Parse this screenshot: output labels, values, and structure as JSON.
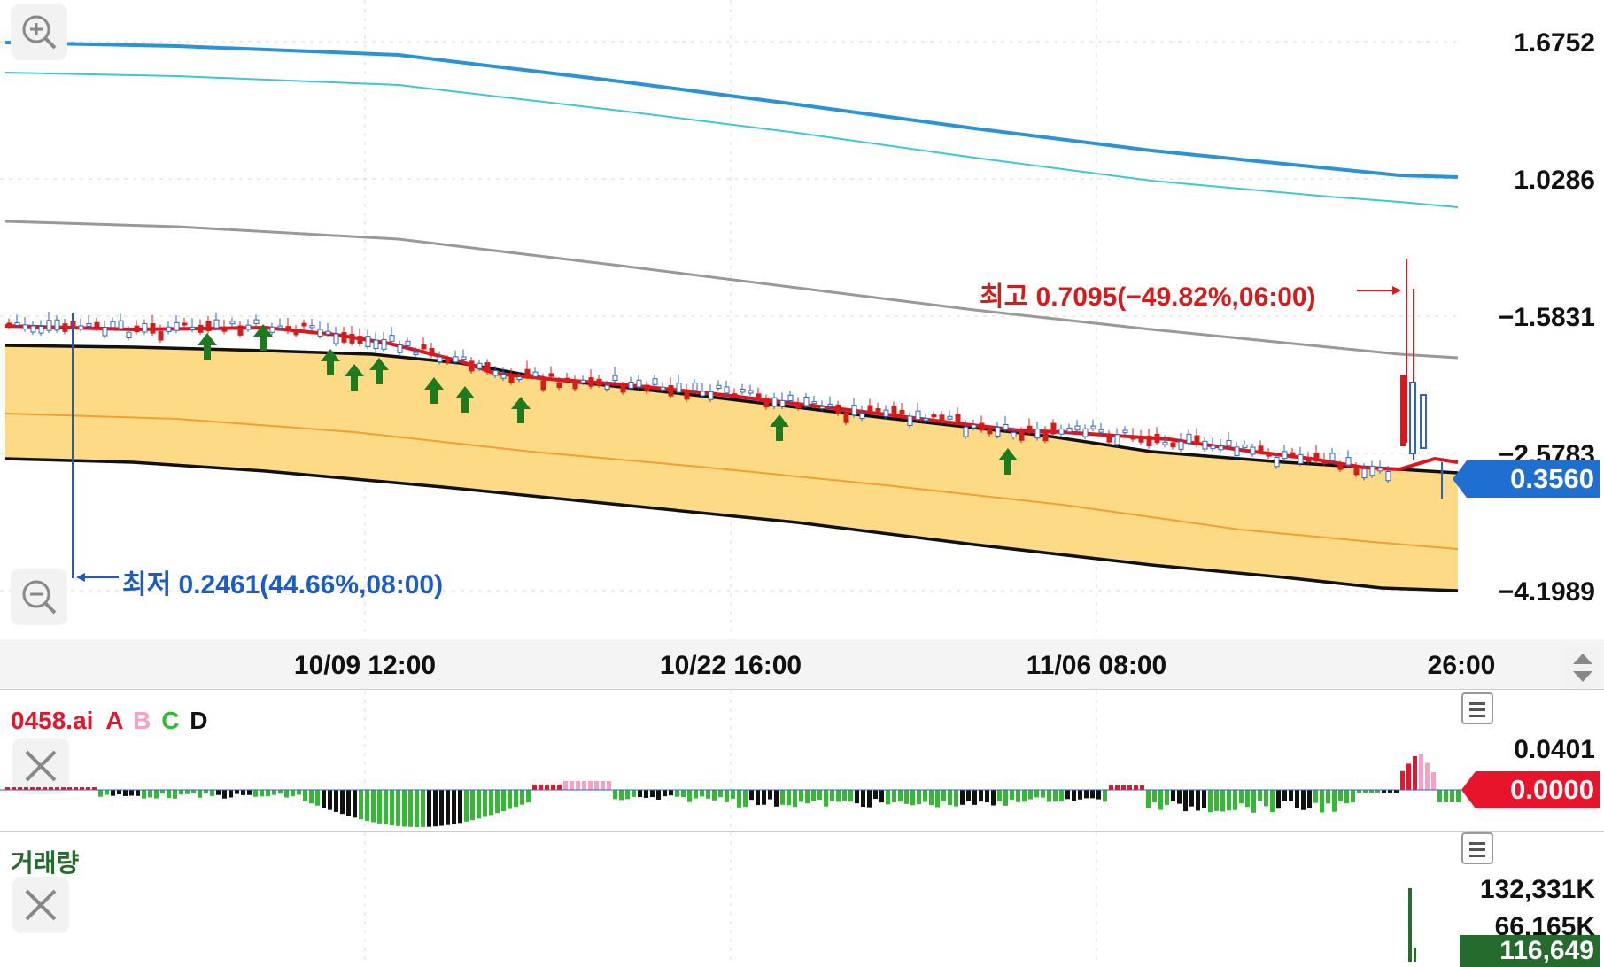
{
  "chart_data": {
    "type": "candlestick",
    "price_axis": {
      "tick_labels": [
        "1.6752",
        "1.0286",
        "−1.5831",
        "−2.5783",
        "−4.1989"
      ],
      "current_price": "0.3560"
    },
    "time_axis": {
      "tick_labels": [
        "10/09 12:00",
        "10/22 16:00",
        "11/06 08:00",
        "26:00"
      ]
    },
    "annotations": {
      "high": "최고 0.7095(−49.82%,06:00)",
      "low": "최저 0.2461(44.66%,08:00)"
    }
  },
  "indicator": {
    "symbol": "0458.ai",
    "legend": [
      "A",
      "B",
      "C",
      "D"
    ],
    "legend_colors": [
      "#e8142b",
      "#f4a0c8",
      "#35b935",
      "#111111"
    ],
    "axis_value": "0.0401",
    "current_value": "0.0000"
  },
  "volume": {
    "title": "거래량",
    "axis_values": [
      "132,331K",
      "66,165K"
    ],
    "current_value": "116,649"
  },
  "colors": {
    "band_fill": "#fddb86",
    "price_tag": "#1f6fd1",
    "high_label": "#d41c1c",
    "low_label": "#1c5cc7",
    "ma_red": "#e0141c",
    "ma_blue": "#2a93d8",
    "ma_teal": "#3cc8d0",
    "ma_gray": "#999999",
    "volume_green": "#256b2e"
  },
  "icons": [
    "zoom-in-icon",
    "zoom-out-icon",
    "close-icon",
    "menu-icon",
    "scroll-arrows-icon",
    "buy-signal-arrow-icon"
  ]
}
